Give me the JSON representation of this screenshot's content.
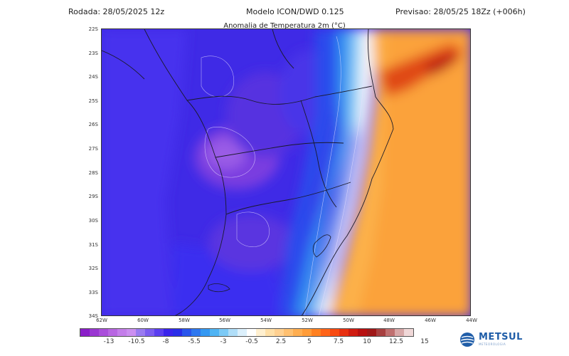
{
  "header": {
    "run": "Rodada: 28/05/2025 12z",
    "model": "Modelo ICON/DWD 0.125",
    "forecast": "Previsao: 28/05/25 18Zz (+006h)"
  },
  "map": {
    "title": "Anomalia de Temperatura 2m (°C)",
    "lat_labels": [
      "22S",
      "23S",
      "24S",
      "25S",
      "26S",
      "27S",
      "28S",
      "29S",
      "30S",
      "31S",
      "32S",
      "33S",
      "34S"
    ],
    "lon_labels": [
      "62W",
      "60W",
      "58W",
      "56W",
      "54W",
      "52W",
      "50W",
      "48W",
      "46W",
      "44W"
    ],
    "field_description": "negative anomalies (purple/blue) over interior; positive anomalies (orange) over ocean and coast"
  },
  "colorbar": {
    "colors": [
      "#8a1ec8",
      "#9a36d2",
      "#aa4edb",
      "#b866e2",
      "#c47eea",
      "#cc8ff0",
      "#9a7bf0",
      "#7b5cf0",
      "#5a3ef0",
      "#3a24ec",
      "#2a2ee8",
      "#2a55ec",
      "#2e78f0",
      "#3498f2",
      "#4fb4f4",
      "#7ccaf6",
      "#b0def8",
      "#dcf0fc",
      "#ffffff",
      "#fff0d0",
      "#ffe0a8",
      "#ffd090",
      "#ffc070",
      "#ffae50",
      "#ff9c38",
      "#ff8020",
      "#ff6418",
      "#f84a10",
      "#e83010",
      "#d01c10",
      "#b81010",
      "#a01818",
      "#a84040",
      "#c07070",
      "#d8a8a8",
      "#f0d8d8"
    ],
    "ticks": [
      "-13",
      "-10.5",
      "-8",
      "-5.5",
      "-3",
      "-0.5",
      "2.5",
      "5",
      "7.5",
      "10",
      "12.5",
      "15"
    ]
  },
  "logo": {
    "name": "METSUL",
    "tagline": "METEOROLOGIA"
  }
}
